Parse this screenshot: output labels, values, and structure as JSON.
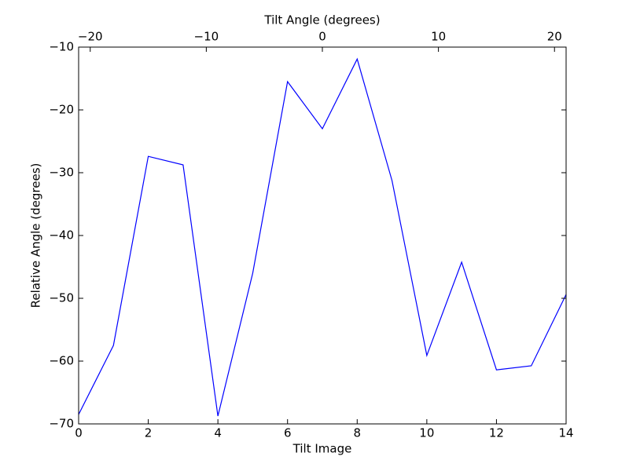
{
  "chart_data": {
    "type": "line",
    "xlabel": "Tilt Image",
    "ylabel": "Relative Angle (degrees)",
    "x2label": "Tilt Angle (degrees)",
    "x": [
      0,
      1,
      2,
      3,
      4,
      5,
      6,
      7,
      8,
      9,
      10,
      11,
      12,
      13,
      14
    ],
    "values": [
      -68.5,
      -57.5,
      -27.4,
      -28.75,
      -68.75,
      -46,
      -15.5,
      -23,
      -11.9,
      -31.25,
      -59.1,
      -44.25,
      -61.4,
      -60.75,
      -49.4
    ],
    "color": "#0000ff",
    "xlim": [
      0,
      14
    ],
    "xticks": [
      0,
      2,
      4,
      6,
      8,
      10,
      12,
      14
    ],
    "x2lim": [
      -21,
      21
    ],
    "x2ticks": [
      {
        "value": -20,
        "label": "−20"
      },
      {
        "value": -10,
        "label": "−10"
      },
      0,
      10,
      20
    ],
    "ylim": [
      -70,
      -10
    ],
    "yticks": [
      {
        "value": -70,
        "label": "−70"
      },
      {
        "value": -60,
        "label": "−60"
      },
      {
        "value": -50,
        "label": "−50"
      },
      {
        "value": -40,
        "label": "−40"
      },
      {
        "value": -30,
        "label": "−30"
      },
      {
        "value": -20,
        "label": "−20"
      },
      {
        "value": -10,
        "label": "−10"
      }
    ]
  }
}
